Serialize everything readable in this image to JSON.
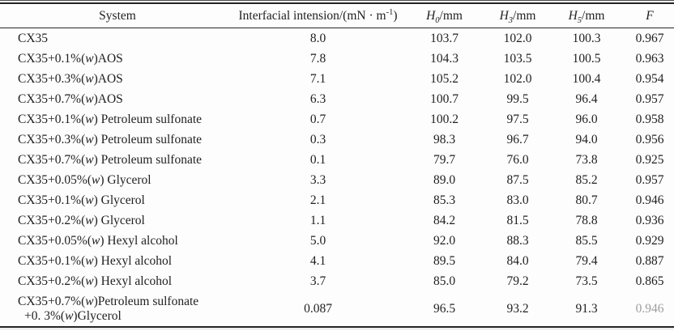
{
  "table": {
    "columns": [
      {
        "key": "system",
        "parts": [
          {
            "t": "System"
          }
        ]
      },
      {
        "key": "tension",
        "parts": [
          {
            "t": "Interfacial intension/(mN · m"
          },
          {
            "t": "-1",
            "s": "sup"
          },
          {
            "t": ")"
          }
        ]
      },
      {
        "key": "h0",
        "parts": [
          {
            "t": "H",
            "s": "i"
          },
          {
            "t": "0",
            "s": "sub"
          },
          {
            "t": "/mm"
          }
        ]
      },
      {
        "key": "h3",
        "parts": [
          {
            "t": "H",
            "s": "i"
          },
          {
            "t": "3",
            "s": "sub"
          },
          {
            "t": "/mm"
          }
        ]
      },
      {
        "key": "h5",
        "parts": [
          {
            "t": "H",
            "s": "i"
          },
          {
            "t": "5",
            "s": "sub"
          },
          {
            "t": "/mm"
          }
        ]
      },
      {
        "key": "f",
        "parts": [
          {
            "t": "F",
            "s": "i"
          }
        ]
      }
    ],
    "rows": [
      {
        "system": [
          "CX35"
        ],
        "tension": "8.0",
        "h0": "103.7",
        "h3": "102.0",
        "h5": "100.3",
        "f": "0.967"
      },
      {
        "system": [
          "CX35+0.1%(w)AOS"
        ],
        "tension": "7.8",
        "h0": "104.3",
        "h3": "103.5",
        "h5": "100.5",
        "f": "0.963"
      },
      {
        "system": [
          "CX35+0.3%(w)AOS"
        ],
        "tension": "7.1",
        "h0": "105.2",
        "h3": "102.0",
        "h5": "100.4",
        "f": "0.954"
      },
      {
        "system": [
          "CX35+0.7%(w)AOS"
        ],
        "tension": "6.3",
        "h0": "100.7",
        "h3": "99.5",
        "h5": "96.4",
        "f": "0.957"
      },
      {
        "system": [
          "CX35+0.1%(w) Petroleum sulfonate"
        ],
        "tension": "0.7",
        "h0": "100.2",
        "h3": "97.5",
        "h5": "96.0",
        "f": "0.958"
      },
      {
        "system": [
          "CX35+0.3%(w) Petroleum sulfonate"
        ],
        "tension": "0.3",
        "h0": "98.3",
        "h3": "96.7",
        "h5": "94.0",
        "f": "0.956"
      },
      {
        "system": [
          "CX35+0.7%(w) Petroleum sulfonate"
        ],
        "tension": "0.1",
        "h0": "79.7",
        "h3": "76.0",
        "h5": "73.8",
        "f": "0.925"
      },
      {
        "system": [
          "CX35+0.05%(w) Glycerol"
        ],
        "tension": "3.3",
        "h0": "89.0",
        "h3": "87.5",
        "h5": "85.2",
        "f": "0.957"
      },
      {
        "system": [
          "CX35+0.1%(w) Glycerol"
        ],
        "tension": "2.1",
        "h0": "85.3",
        "h3": "83.0",
        "h5": "80.7",
        "f": "0.946"
      },
      {
        "system": [
          "CX35+0.2%(w) Glycerol"
        ],
        "tension": "1.1",
        "h0": "84.2",
        "h3": "81.5",
        "h5": "78.8",
        "f": "0.936"
      },
      {
        "system": [
          "CX35+0.05%(w) Hexyl alcohol"
        ],
        "tension": "5.0",
        "h0": "92.0",
        "h3": "88.3",
        "h5": "85.5",
        "f": "0.929"
      },
      {
        "system": [
          "CX35+0.1%(w) Hexyl alcohol"
        ],
        "tension": "4.1",
        "h0": "89.5",
        "h3": "84.0",
        "h5": "79.4",
        "f": "0.887"
      },
      {
        "system": [
          "CX35+0.2%(w) Hexyl alcohol"
        ],
        "tension": "3.7",
        "h0": "85.0",
        "h3": "79.2",
        "h5": "73.5",
        "f": "0.865"
      },
      {
        "system": [
          "CX35+0.7%(w)Petroleum sulfonate",
          "+0. 3%(w)Glycerol"
        ],
        "tension": "0.087",
        "h0": "96.5",
        "h3": "93.2",
        "h5": "91.3",
        "f": "0.946"
      }
    ]
  }
}
